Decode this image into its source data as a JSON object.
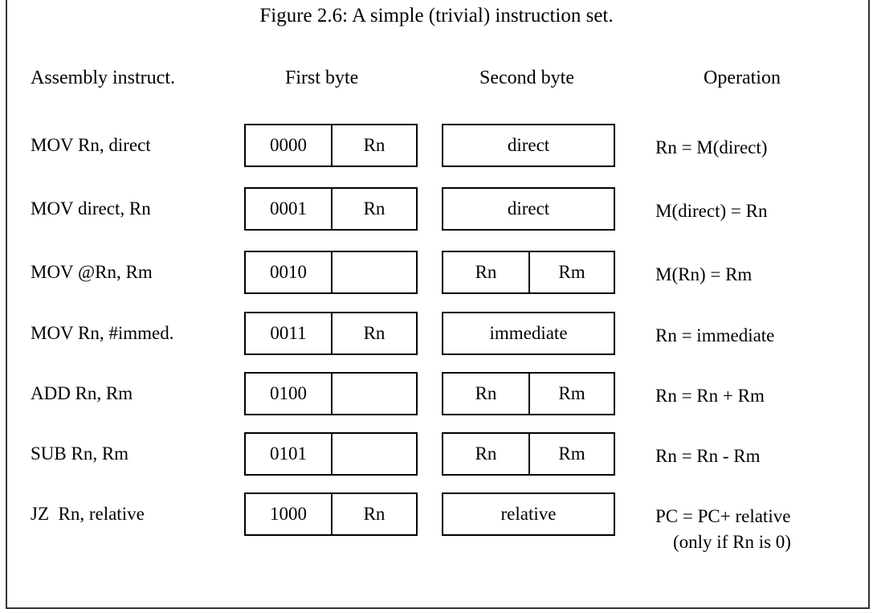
{
  "title": "Figure 2.6: A simple (trivial) instruction set.",
  "headers": {
    "assembly": "Assembly instruct.",
    "first_byte": "First byte",
    "second_byte": "Second byte",
    "operation": "Operation"
  },
  "rows": [
    {
      "asm": "MOV Rn, direct",
      "opcode": "0000",
      "reg": "Rn",
      "second": [
        "direct"
      ],
      "op1": "Rn = M(direct)",
      "op2": ""
    },
    {
      "asm": "MOV direct, Rn",
      "opcode": "0001",
      "reg": "Rn",
      "second": [
        "direct"
      ],
      "op1": "M(direct) = Rn",
      "op2": ""
    },
    {
      "asm": "MOV @Rn, Rm",
      "opcode": "0010",
      "reg": "",
      "second": [
        "Rn",
        "Rm"
      ],
      "op1": "M(Rn) = Rm",
      "op2": ""
    },
    {
      "asm": "MOV Rn, #immed.",
      "opcode": "0011",
      "reg": "Rn",
      "second": [
        "immediate"
      ],
      "op1": "Rn = immediate",
      "op2": ""
    },
    {
      "asm": "ADD Rn, Rm",
      "opcode": "0100",
      "reg": "",
      "second": [
        "Rn",
        "Rm"
      ],
      "op1": "Rn = Rn + Rm",
      "op2": ""
    },
    {
      "asm": "SUB Rn, Rm",
      "opcode": "0101",
      "reg": "",
      "second": [
        "Rn",
        "Rm"
      ],
      "op1": "Rn = Rn - Rm",
      "op2": ""
    },
    {
      "asm": "JZ  Rn, relative",
      "opcode": "1000",
      "reg": "Rn",
      "second": [
        "relative"
      ],
      "op1": "PC = PC+ relative",
      "op2": "(only if Rn is 0)"
    }
  ]
}
